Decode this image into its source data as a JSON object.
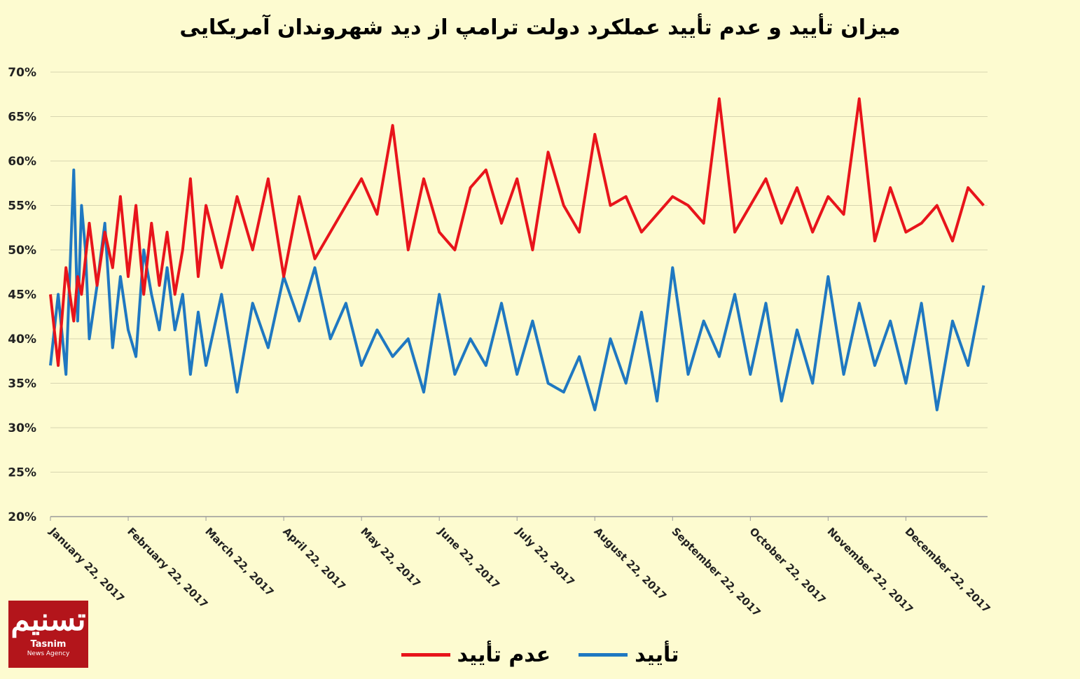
{
  "chart_data": {
    "type": "line",
    "title": "میزان تأیید و عدم تأیید عملکرد دولت ترامپ از دید شهروندان آمریکایی",
    "xlabel": "",
    "ylabel": "",
    "ylim": [
      20,
      70
    ],
    "y_ticks": [
      "20%",
      "25%",
      "30%",
      "35%",
      "40%",
      "45%",
      "50%",
      "55%",
      "60%",
      "65%",
      "70%"
    ],
    "x_ticks": [
      "January 22, 2017",
      "February 22, 2017",
      "March 22, 2017",
      "April 22, 2017",
      "May 22, 2017",
      "June 22, 2017",
      "July 22, 2017",
      "August 22, 2017",
      "September 22, 2017",
      "October 22, 2017",
      "November 22, 2017",
      "December 22, 2017"
    ],
    "x_range_months": [
      0,
      12.05
    ],
    "grid": true,
    "legend_position": "bottom",
    "series": [
      {
        "name": "تأیید",
        "color": "#1f78c1",
        "x": [
          0,
          0.1,
          0.2,
          0.3,
          0.35,
          0.4,
          0.45,
          0.5,
          0.6,
          0.7,
          0.8,
          0.9,
          1.0,
          1.1,
          1.2,
          1.3,
          1.4,
          1.5,
          1.6,
          1.7,
          1.8,
          1.9,
          2.0,
          2.2,
          2.4,
          2.6,
          2.8,
          3.0,
          3.2,
          3.4,
          3.6,
          3.8,
          4.0,
          4.2,
          4.4,
          4.6,
          4.8,
          5.0,
          5.2,
          5.4,
          5.6,
          5.8,
          6.0,
          6.2,
          6.4,
          6.6,
          6.8,
          7.0,
          7.2,
          7.4,
          7.6,
          7.8,
          8.0,
          8.2,
          8.4,
          8.6,
          8.8,
          9.0,
          9.2,
          9.4,
          9.6,
          9.8,
          10.0,
          10.2,
          10.4,
          10.6,
          10.8,
          11.0,
          11.2,
          11.4,
          11.6,
          11.8,
          12.0
        ],
        "values": [
          37,
          45,
          36,
          59,
          42,
          55,
          50,
          40,
          46,
          53,
          39,
          47,
          41,
          38,
          50,
          45,
          41,
          48,
          41,
          45,
          36,
          43,
          37,
          45,
          34,
          44,
          39,
          47,
          42,
          48,
          40,
          44,
          37,
          41,
          38,
          40,
          34,
          45,
          36,
          40,
          37,
          44,
          36,
          42,
          35,
          34,
          38,
          32,
          40,
          35,
          43,
          33,
          48,
          36,
          42,
          38,
          45,
          36,
          44,
          33,
          41,
          35,
          47,
          36,
          44,
          37,
          42,
          35,
          44,
          32,
          42,
          37,
          46
        ]
      },
      {
        "name": "عدم تأیید",
        "color": "#e8141b",
        "x": [
          0,
          0.1,
          0.2,
          0.3,
          0.35,
          0.4,
          0.45,
          0.5,
          0.6,
          0.7,
          0.8,
          0.9,
          1.0,
          1.1,
          1.2,
          1.3,
          1.4,
          1.5,
          1.6,
          1.7,
          1.8,
          1.9,
          2.0,
          2.2,
          2.4,
          2.6,
          2.8,
          3.0,
          3.2,
          3.4,
          3.6,
          3.8,
          4.0,
          4.2,
          4.4,
          4.6,
          4.8,
          5.0,
          5.2,
          5.4,
          5.6,
          5.8,
          6.0,
          6.2,
          6.4,
          6.6,
          6.8,
          7.0,
          7.2,
          7.4,
          7.6,
          7.8,
          8.0,
          8.2,
          8.4,
          8.6,
          8.8,
          9.0,
          9.2,
          9.4,
          9.6,
          9.8,
          10.0,
          10.2,
          10.4,
          10.6,
          10.8,
          11.0,
          11.2,
          11.4,
          11.6,
          11.8,
          12.0
        ],
        "values": [
          45,
          37,
          48,
          42,
          47,
          45,
          49,
          53,
          46,
          52,
          48,
          56,
          47,
          55,
          45,
          53,
          46,
          52,
          45,
          50,
          58,
          47,
          55,
          48,
          56,
          50,
          58,
          47,
          56,
          49,
          52,
          55,
          58,
          54,
          64,
          50,
          58,
          52,
          50,
          57,
          59,
          53,
          58,
          50,
          61,
          55,
          52,
          63,
          55,
          56,
          52,
          54,
          56,
          55,
          53,
          67,
          52,
          55,
          58,
          53,
          57,
          52,
          56,
          54,
          67,
          51,
          57,
          52,
          53,
          55,
          51,
          57,
          55
        ]
      }
    ]
  },
  "logo": {
    "mark": "تسنیم",
    "name": "Tasnim",
    "sub": "News Agency"
  }
}
